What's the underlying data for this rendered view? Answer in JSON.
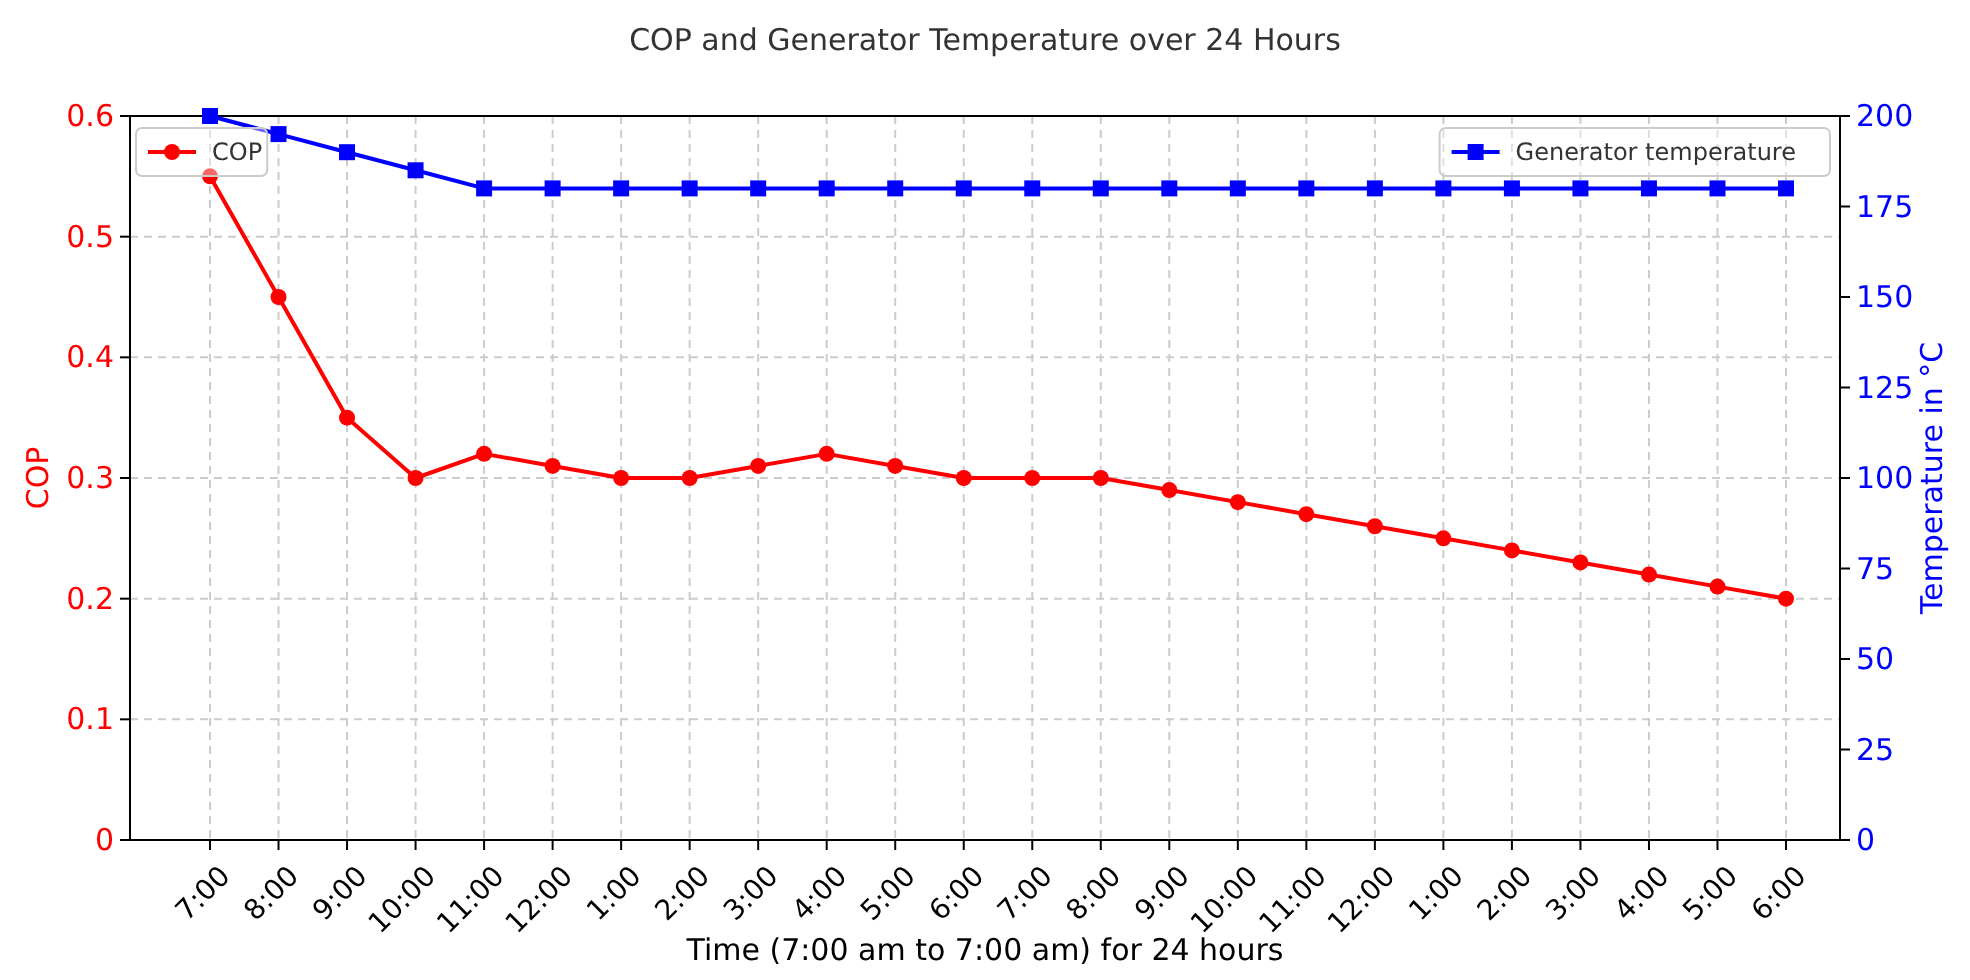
{
  "chart_data": {
    "type": "line",
    "title": "COP and Generator Temperature over 24 Hours",
    "xlabel": "Time (7:00 am to 7:00 am) for 24 hours",
    "ylabel": "COP",
    "y2label": "Temperature in °C",
    "categories": [
      "7:00",
      "8:00",
      "9:00",
      "10:00",
      "11:00",
      "12:00",
      "1:00",
      "2:00",
      "3:00",
      "4:00",
      "5:00",
      "6:00",
      "7:00",
      "8:00",
      "9:00",
      "10:00",
      "11:00",
      "12:00",
      "1:00",
      "2:00",
      "3:00",
      "4:00",
      "5:00",
      "6:00"
    ],
    "series": [
      {
        "name": "COP",
        "color": "#ff0000",
        "marker": "circle",
        "values": [
          0.55,
          0.45,
          0.35,
          0.3,
          0.32,
          0.31,
          0.3,
          0.3,
          0.31,
          0.32,
          0.31,
          0.3,
          0.3,
          0.3,
          0.29,
          0.28,
          0.27,
          0.26,
          0.25,
          0.24,
          0.23,
          0.22,
          0.21,
          0.2
        ]
      },
      {
        "name": "Generator temperature",
        "color": "#0000ff",
        "marker": "square",
        "axis": "y2",
        "values": [
          200,
          195,
          190,
          185,
          180,
          180,
          180,
          180,
          180,
          180,
          180,
          180,
          180,
          180,
          180,
          180,
          180,
          180,
          180,
          180,
          180,
          180,
          180,
          180
        ]
      }
    ],
    "ylim": [
      0,
      0.6
    ],
    "yticks": [
      0,
      0.1,
      0.2,
      0.3,
      0.4,
      0.5,
      0.6
    ],
    "y2lim": [
      0,
      200
    ],
    "y2ticks": [
      0,
      25,
      50,
      75,
      100,
      125,
      150,
      175,
      200
    ],
    "grid": true,
    "legend": "top",
    "line_style": "solid"
  }
}
